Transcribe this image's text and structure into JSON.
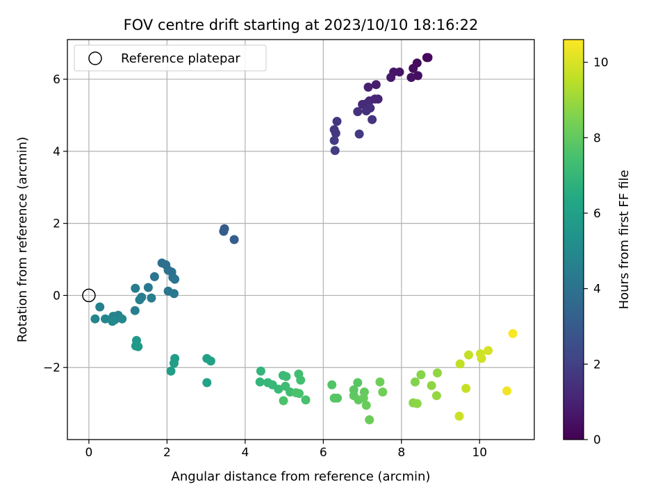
{
  "chart_data": {
    "type": "scatter",
    "title": "FOV centre drift starting at 2023/10/10 18:16:22",
    "xlabel": "Angular distance from reference (arcmin)",
    "ylabel": "Rotation from reference (arcmin)",
    "colorbar_label": "Hours from first FF file",
    "xlim": [
      -0.55,
      11.4
    ],
    "ylim": [
      -4.0,
      7.1
    ],
    "clim": [
      0,
      10.6
    ],
    "colormap": "viridis",
    "grid": true,
    "x_ticks": [
      "0",
      "2",
      "4",
      "6",
      "8",
      "10"
    ],
    "y_ticks": [
      "−2",
      "0",
      "2",
      "4",
      "6"
    ],
    "colorbar_ticks": [
      "0",
      "2",
      "4",
      "6",
      "8",
      "10"
    ],
    "legend": {
      "position": "upper-left",
      "label": "Reference platepar"
    },
    "reference_point": {
      "x": 0,
      "y": 0,
      "marker": "open-circle",
      "color": "#000000"
    },
    "points": [
      {
        "x": 8.65,
        "y": 6.6,
        "h": 0.1
      },
      {
        "x": 8.68,
        "y": 6.6,
        "h": 0.2
      },
      {
        "x": 8.4,
        "y": 6.45,
        "h": 0.3
      },
      {
        "x": 8.3,
        "y": 6.3,
        "h": 0.35
      },
      {
        "x": 8.42,
        "y": 6.1,
        "h": 0.45
      },
      {
        "x": 8.25,
        "y": 6.05,
        "h": 0.5
      },
      {
        "x": 7.95,
        "y": 6.2,
        "h": 0.6
      },
      {
        "x": 7.8,
        "y": 6.2,
        "h": 0.65
      },
      {
        "x": 7.73,
        "y": 6.05,
        "h": 0.75
      },
      {
        "x": 7.35,
        "y": 5.85,
        "h": 0.85
      },
      {
        "x": 7.15,
        "y": 5.78,
        "h": 0.95
      },
      {
        "x": 7.4,
        "y": 5.45,
        "h": 1.05
      },
      {
        "x": 7.32,
        "y": 5.45,
        "h": 1.1
      },
      {
        "x": 7.18,
        "y": 5.4,
        "h": 1.2
      },
      {
        "x": 7.0,
        "y": 5.3,
        "h": 1.25
      },
      {
        "x": 7.1,
        "y": 5.32,
        "h": 1.3
      },
      {
        "x": 7.2,
        "y": 5.2,
        "h": 1.4
      },
      {
        "x": 7.1,
        "y": 5.12,
        "h": 1.45
      },
      {
        "x": 6.88,
        "y": 5.1,
        "h": 1.5
      },
      {
        "x": 7.25,
        "y": 4.88,
        "h": 1.55
      },
      {
        "x": 6.35,
        "y": 4.83,
        "h": 1.65
      },
      {
        "x": 6.28,
        "y": 4.6,
        "h": 1.7
      },
      {
        "x": 6.32,
        "y": 4.5,
        "h": 1.75
      },
      {
        "x": 6.92,
        "y": 4.48,
        "h": 1.8
      },
      {
        "x": 6.28,
        "y": 4.3,
        "h": 1.85
      },
      {
        "x": 6.3,
        "y": 4.02,
        "h": 1.9
      },
      {
        "x": 3.47,
        "y": 1.85,
        "h": 3.0
      },
      {
        "x": 3.45,
        "y": 1.78,
        "h": 3.05
      },
      {
        "x": 3.72,
        "y": 1.55,
        "h": 3.15
      },
      {
        "x": 1.87,
        "y": 0.9,
        "h": 3.85
      },
      {
        "x": 1.97,
        "y": 0.85,
        "h": 3.9
      },
      {
        "x": 2.03,
        "y": 0.7,
        "h": 3.95
      },
      {
        "x": 2.12,
        "y": 0.65,
        "h": 4.0
      },
      {
        "x": 2.15,
        "y": 0.5,
        "h": 4.05
      },
      {
        "x": 2.2,
        "y": 0.45,
        "h": 4.1
      },
      {
        "x": 1.68,
        "y": 0.52,
        "h": 4.15
      },
      {
        "x": 2.03,
        "y": 0.12,
        "h": 4.2
      },
      {
        "x": 2.18,
        "y": 0.05,
        "h": 4.25
      },
      {
        "x": 1.52,
        "y": 0.22,
        "h": 4.3
      },
      {
        "x": 1.19,
        "y": 0.2,
        "h": 4.35
      },
      {
        "x": 1.35,
        "y": -0.05,
        "h": 4.4
      },
      {
        "x": 1.6,
        "y": -0.07,
        "h": 4.45
      },
      {
        "x": 1.3,
        "y": -0.12,
        "h": 4.5
      },
      {
        "x": 1.18,
        "y": -0.42,
        "h": 4.55
      },
      {
        "x": 0.28,
        "y": -0.32,
        "h": 4.6
      },
      {
        "x": 0.75,
        "y": -0.55,
        "h": 4.65
      },
      {
        "x": 0.62,
        "y": -0.58,
        "h": 4.7
      },
      {
        "x": 0.16,
        "y": -0.65,
        "h": 4.75
      },
      {
        "x": 0.42,
        "y": -0.65,
        "h": 4.8
      },
      {
        "x": 0.66,
        "y": -0.68,
        "h": 4.85
      },
      {
        "x": 0.85,
        "y": -0.65,
        "h": 4.9
      },
      {
        "x": 0.6,
        "y": -0.72,
        "h": 4.95
      },
      {
        "x": 1.22,
        "y": -1.25,
        "h": 5.6
      },
      {
        "x": 1.2,
        "y": -1.4,
        "h": 5.65
      },
      {
        "x": 1.26,
        "y": -1.42,
        "h": 5.7
      },
      {
        "x": 2.2,
        "y": -1.75,
        "h": 5.8
      },
      {
        "x": 2.18,
        "y": -1.88,
        "h": 5.85
      },
      {
        "x": 2.1,
        "y": -2.1,
        "h": 5.9
      },
      {
        "x": 3.02,
        "y": -1.75,
        "h": 6.0
      },
      {
        "x": 3.12,
        "y": -1.82,
        "h": 6.05
      },
      {
        "x": 3.02,
        "y": -2.42,
        "h": 6.1
      },
      {
        "x": 4.4,
        "y": -2.1,
        "h": 6.9
      },
      {
        "x": 4.38,
        "y": -2.4,
        "h": 6.95
      },
      {
        "x": 4.58,
        "y": -2.42,
        "h": 7.0
      },
      {
        "x": 4.7,
        "y": -2.48,
        "h": 7.05
      },
      {
        "x": 4.85,
        "y": -2.6,
        "h": 7.1
      },
      {
        "x": 4.97,
        "y": -2.22,
        "h": 7.15
      },
      {
        "x": 5.05,
        "y": -2.25,
        "h": 7.2
      },
      {
        "x": 5.03,
        "y": -2.52,
        "h": 7.25
      },
      {
        "x": 5.15,
        "y": -2.68,
        "h": 7.3
      },
      {
        "x": 5.37,
        "y": -2.18,
        "h": 7.35
      },
      {
        "x": 5.42,
        "y": -2.35,
        "h": 7.4
      },
      {
        "x": 5.38,
        "y": -2.72,
        "h": 7.45
      },
      {
        "x": 5.55,
        "y": -2.9,
        "h": 7.5
      },
      {
        "x": 4.98,
        "y": -2.92,
        "h": 7.55
      },
      {
        "x": 5.3,
        "y": -2.7,
        "h": 7.55
      },
      {
        "x": 6.22,
        "y": -2.48,
        "h": 7.7
      },
      {
        "x": 6.28,
        "y": -2.85,
        "h": 7.75
      },
      {
        "x": 6.36,
        "y": -2.85,
        "h": 7.8
      },
      {
        "x": 6.88,
        "y": -2.42,
        "h": 7.85
      },
      {
        "x": 6.78,
        "y": -2.62,
        "h": 7.9
      },
      {
        "x": 6.78,
        "y": -2.78,
        "h": 7.95
      },
      {
        "x": 6.9,
        "y": -2.9,
        "h": 8.0
      },
      {
        "x": 7.05,
        "y": -2.68,
        "h": 8.05
      },
      {
        "x": 7.03,
        "y": -2.85,
        "h": 8.1
      },
      {
        "x": 7.1,
        "y": -3.05,
        "h": 8.15
      },
      {
        "x": 7.18,
        "y": -3.45,
        "h": 8.2
      },
      {
        "x": 7.45,
        "y": -2.4,
        "h": 8.25
      },
      {
        "x": 7.52,
        "y": -2.68,
        "h": 8.3
      },
      {
        "x": 8.35,
        "y": -2.4,
        "h": 8.6
      },
      {
        "x": 8.5,
        "y": -2.2,
        "h": 8.65
      },
      {
        "x": 8.3,
        "y": -2.98,
        "h": 8.7
      },
      {
        "x": 8.4,
        "y": -3.0,
        "h": 8.75
      },
      {
        "x": 8.77,
        "y": -2.5,
        "h": 8.8
      },
      {
        "x": 8.92,
        "y": -2.15,
        "h": 8.85
      },
      {
        "x": 8.9,
        "y": -2.78,
        "h": 8.9
      },
      {
        "x": 9.5,
        "y": -1.9,
        "h": 9.6
      },
      {
        "x": 9.72,
        "y": -1.65,
        "h": 9.65
      },
      {
        "x": 9.65,
        "y": -2.58,
        "h": 9.7
      },
      {
        "x": 9.48,
        "y": -3.35,
        "h": 9.75
      },
      {
        "x": 10.02,
        "y": -1.62,
        "h": 9.8
      },
      {
        "x": 10.05,
        "y": -1.75,
        "h": 9.85
      },
      {
        "x": 10.22,
        "y": -1.53,
        "h": 9.95
      },
      {
        "x": 10.7,
        "y": -2.65,
        "h": 10.4
      },
      {
        "x": 10.85,
        "y": -1.06,
        "h": 10.55
      }
    ]
  }
}
